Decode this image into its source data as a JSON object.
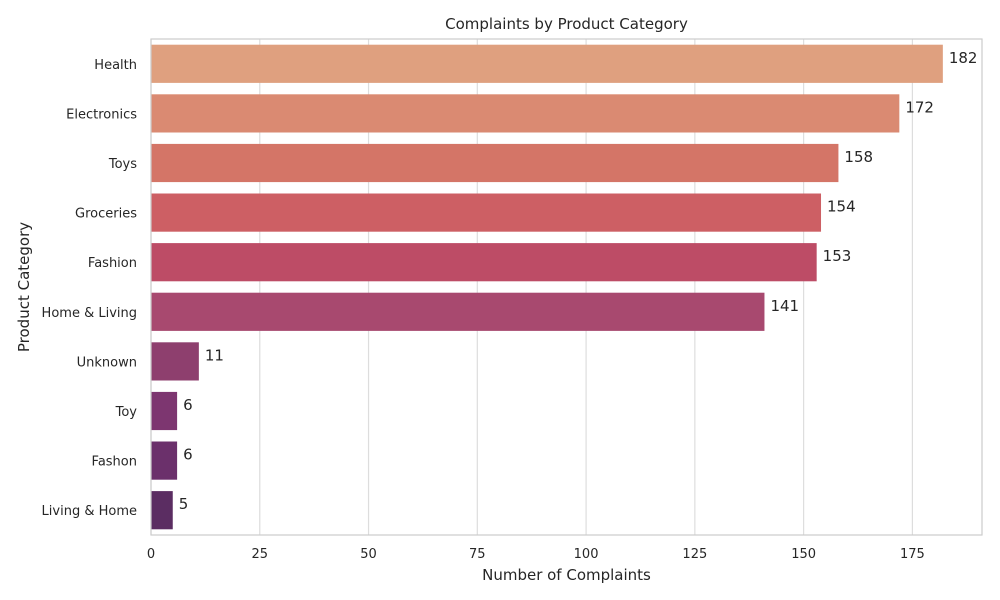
{
  "chart_data": {
    "type": "bar",
    "orientation": "horizontal",
    "title": "Complaints by Product Category",
    "xlabel": "Number of Complaints",
    "ylabel": "Product Category",
    "categories": [
      "Health",
      "Electronics",
      "Toys",
      "Groceries",
      "Fashion",
      "Home & Living",
      "Unknown",
      "Toy",
      "Fashon",
      "Living & Home"
    ],
    "values": [
      182,
      172,
      158,
      154,
      153,
      141,
      11,
      6,
      6,
      5
    ],
    "xlim": [
      0,
      191
    ],
    "xticks": [
      0,
      25,
      50,
      75,
      100,
      125,
      150,
      175
    ],
    "grid": "vertical",
    "colors": [
      "#dfa07f",
      "#da8a72",
      "#d47567",
      "#cd5f64",
      "#bd4c66",
      "#a8496f",
      "#8e3f6e",
      "#7d3670",
      "#6b306b",
      "#5b2d62"
    ]
  }
}
